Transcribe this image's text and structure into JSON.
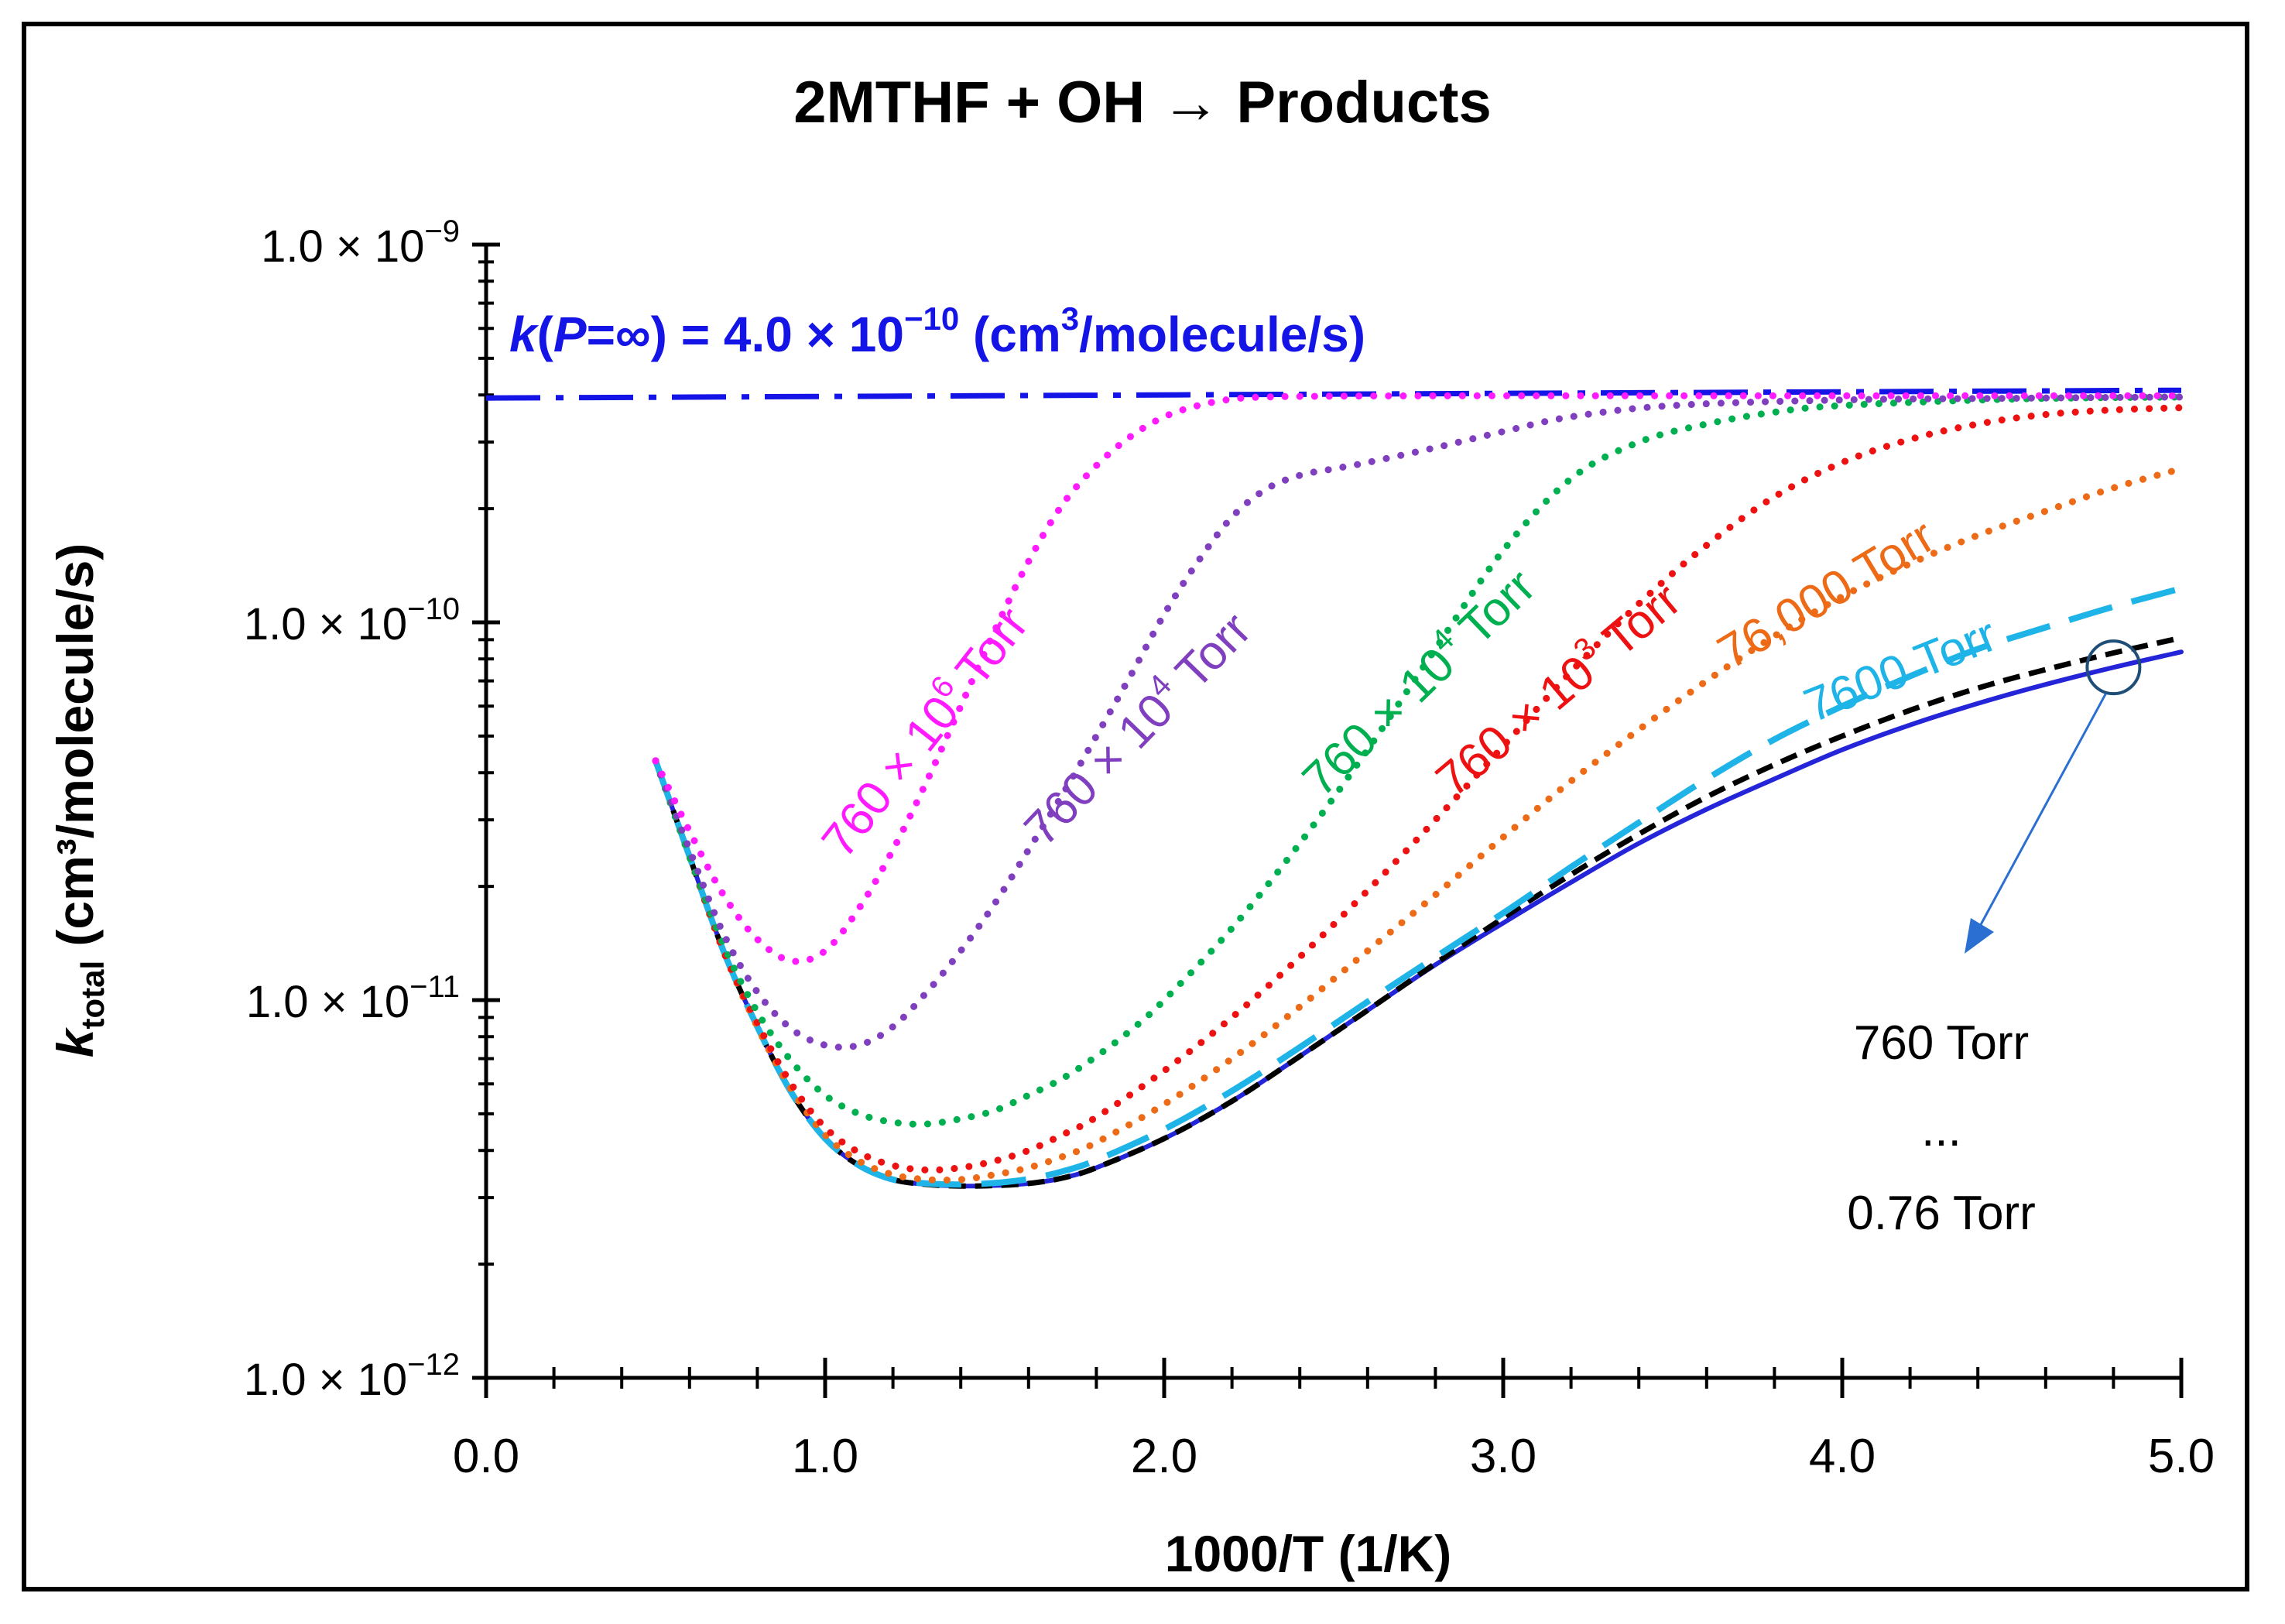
{
  "chart_data": {
    "type": "line",
    "title": "2MTHF + OH → Products",
    "xlabel": "1000/T (1/K)",
    "ylabel_main": "k",
    "ylabel_sub": "total",
    "ylabel_rest": " (cm³/molecule/s)",
    "xlim": [
      0.0,
      5.0
    ],
    "ylim_log10": [
      -12,
      -9
    ],
    "yscale": "log",
    "x_ticks": [
      {
        "value": 0.0,
        "label": "0.0"
      },
      {
        "value": 1.0,
        "label": "1.0"
      },
      {
        "value": 2.0,
        "label": "2.0"
      },
      {
        "value": 3.0,
        "label": "3.0"
      },
      {
        "value": 4.0,
        "label": "4.0"
      },
      {
        "value": 5.0,
        "label": "5.0"
      }
    ],
    "y_ticks": [
      {
        "exp": -9,
        "mant": "1.0 × 10",
        "sup": "−9"
      },
      {
        "exp": -10,
        "mant": "1.0 × 10",
        "sup": "−10"
      },
      {
        "exp": -11,
        "mant": "1.0 × 10",
        "sup": "−11"
      },
      {
        "exp": -12,
        "mant": "1.0 × 10",
        "sup": "−12"
      }
    ],
    "hp_limit": {
      "value": 4e-10,
      "label_k": "k",
      "label_p": "P",
      "label_mid": "=∞) = 4.0 × 10",
      "label_sup": "−10",
      "label_end": " (cm",
      "label_sup2": "3",
      "label_tail": "/molecule/s)",
      "color": "#1414e6"
    },
    "series": [
      {
        "name": "760 × 10^6 Torr",
        "label_main": "760 × 10",
        "label_sup": "6",
        "label_end": " Torr",
        "color": "#ff1aff",
        "style": "dotted",
        "x": [
          0.5,
          0.6,
          0.7,
          0.8,
          0.9,
          1.0,
          1.1,
          1.2,
          1.3,
          1.4,
          1.5,
          1.6,
          1.7,
          1.8,
          1.9,
          2.0,
          2.1,
          2.2,
          2.3,
          2.5,
          3.0,
          4.0,
          5.0
        ],
        "y": [
          4.3e-11,
          2.8e-11,
          1.9e-11,
          1.45e-11,
          1.27e-11,
          1.35e-11,
          1.75e-11,
          2.5e-11,
          3.8e-11,
          6e-11,
          9.5e-11,
          1.45e-10,
          2.05e-10,
          2.6e-10,
          3.1e-10,
          3.5e-10,
          3.75e-10,
          3.9e-10,
          3.95e-10,
          3.97e-10,
          3.98e-10,
          3.98e-10,
          3.98e-10
        ]
      },
      {
        "name": "760 × 10^4 Torr",
        "label_main": "760 × 10",
        "label_sup": "4",
        "label_end": " Torr",
        "color": "#7f3fbf",
        "style": "dotted",
        "x": [
          0.5,
          0.6,
          0.7,
          0.8,
          0.9,
          1.0,
          1.1,
          1.2,
          1.3,
          1.4,
          1.5,
          1.6,
          1.7,
          1.8,
          1.9,
          2.0,
          2.1,
          2.2,
          2.3,
          2.4,
          2.5,
          2.6,
          2.8,
          3.0,
          3.2,
          3.5,
          4.0,
          4.5,
          5.0
        ],
        "y": [
          4.3e-11,
          2.5e-11,
          1.5e-11,
          1.05e-11,
          8.4e-12,
          7.6e-12,
          7.6e-12,
          8.5e-12,
          1.05e-11,
          1.35e-11,
          1.8e-11,
          2.5e-11,
          3.5e-11,
          5e-11,
          7.2e-11,
          1.05e-10,
          1.45e-10,
          1.9e-10,
          2.25e-10,
          2.45e-10,
          2.55e-10,
          2.65e-10,
          2.9e-10,
          3.2e-10,
          3.5e-10,
          3.75e-10,
          3.88e-10,
          3.92e-10,
          3.95e-10
        ]
      },
      {
        "name": "760 × 10^4 Torr (green)",
        "label_main": "760 × 10",
        "label_sup": "4",
        "label_end": " Torr",
        "color": "#00b050",
        "style": "dotted",
        "x": [
          0.5,
          0.6,
          0.7,
          0.8,
          0.9,
          1.0,
          1.1,
          1.2,
          1.3,
          1.4,
          1.5,
          1.6,
          1.7,
          1.8,
          1.9,
          2.0,
          2.2,
          2.4,
          2.6,
          2.8,
          3.0,
          3.2,
          3.4,
          3.6,
          3.8,
          4.0,
          4.5,
          5.0
        ],
        "y": [
          4.3e-11,
          2.4e-11,
          1.4e-11,
          9.3e-12,
          6.9e-12,
          5.6e-12,
          5e-12,
          4.75e-12,
          4.7e-12,
          4.85e-12,
          5.1e-12,
          5.6e-12,
          6.2e-12,
          7.1e-12,
          8.3e-12,
          1e-11,
          1.55e-11,
          2.6e-11,
          4.6e-11,
          8.5e-11,
          1.55e-10,
          2.4e-10,
          3e-10,
          3.35e-10,
          3.6e-10,
          3.75e-10,
          3.9e-10,
          3.95e-10
        ]
      },
      {
        "name": "760 × 10^3 Torr",
        "label_main": "760 × 10",
        "label_sup": "3",
        "label_end": " Torr",
        "color": "#ee1111",
        "style": "dotted",
        "x": [
          0.5,
          0.6,
          0.7,
          0.8,
          0.9,
          1.0,
          1.1,
          1.2,
          1.3,
          1.4,
          1.5,
          1.6,
          1.7,
          1.8,
          2.0,
          2.2,
          2.4,
          2.6,
          2.8,
          3.0,
          3.2,
          3.4,
          3.6,
          3.8,
          4.0,
          4.2,
          4.4,
          4.6,
          4.8,
          5.0
        ],
        "y": [
          4.3e-11,
          2.4e-11,
          1.35e-11,
          8.7e-12,
          6e-12,
          4.6e-12,
          3.95e-12,
          3.65e-12,
          3.55e-12,
          3.6e-12,
          3.75e-12,
          4e-12,
          4.4e-12,
          4.9e-12,
          6.5e-12,
          9e-12,
          1.3e-11,
          1.95e-11,
          3e-11,
          4.7e-11,
          7.4e-11,
          1.12e-10,
          1.6e-10,
          2.15e-10,
          2.65e-10,
          3.05e-10,
          3.35e-10,
          3.55e-10,
          3.65e-10,
          3.7e-10
        ]
      },
      {
        "name": "76,000 Torr",
        "label_main": "76,000 Torr",
        "label_sup": "",
        "label_end": "",
        "color": "#ed6a16",
        "style": "dotted",
        "x": [
          0.5,
          0.6,
          0.7,
          0.8,
          0.9,
          1.0,
          1.1,
          1.2,
          1.3,
          1.4,
          1.5,
          1.6,
          1.7,
          1.8,
          2.0,
          2.2,
          2.4,
          2.6,
          2.8,
          3.0,
          3.2,
          3.4,
          3.6,
          3.8,
          4.0,
          4.2,
          4.4,
          4.6,
          4.8,
          5.0
        ],
        "y": [
          4.3e-11,
          2.4e-11,
          1.35e-11,
          8.5e-12,
          5.8e-12,
          4.4e-12,
          3.75e-12,
          3.45e-12,
          3.35e-12,
          3.35e-12,
          3.45e-12,
          3.6e-12,
          3.85e-12,
          4.2e-12,
          5.3e-12,
          7e-12,
          9.6e-12,
          1.35e-11,
          1.9e-11,
          2.7e-11,
          3.8e-11,
          5.2e-11,
          7e-11,
          9.2e-11,
          1.17e-10,
          1.43e-10,
          1.7e-10,
          1.97e-10,
          2.27e-10,
          2.55e-10
        ]
      },
      {
        "name": "7600 Torr",
        "label_main": "7600 Torr",
        "label_sup": "",
        "label_end": "",
        "color": "#1fb4e8",
        "style": "longdash",
        "x": [
          0.5,
          0.6,
          0.7,
          0.8,
          0.9,
          1.0,
          1.1,
          1.2,
          1.3,
          1.4,
          1.5,
          1.6,
          1.7,
          1.8,
          2.0,
          2.2,
          2.4,
          2.6,
          2.8,
          3.0,
          3.2,
          3.4,
          3.6,
          3.8,
          4.0,
          4.2,
          4.4,
          4.6,
          4.8,
          5.0
        ],
        "y": [
          4.3e-11,
          2.4e-11,
          1.35e-11,
          8.5e-12,
          5.7e-12,
          4.3e-12,
          3.65e-12,
          3.35e-12,
          3.27e-12,
          3.25e-12,
          3.28e-12,
          3.36e-12,
          3.52e-12,
          3.77e-12,
          4.55e-12,
          5.75e-12,
          7.5e-12,
          9.9e-12,
          1.3e-11,
          1.7e-11,
          2.25e-11,
          2.95e-11,
          3.85e-11,
          4.9e-11,
          6e-11,
          7.2e-11,
          8.5e-11,
          9.7e-11,
          1.1e-10,
          1.23e-10
        ]
      },
      {
        "name": "760 Torr",
        "label_main": "",
        "label_sup": "",
        "label_end": "",
        "color": "#000000",
        "style": "shortdash",
        "x": [
          0.5,
          0.6,
          0.7,
          0.8,
          0.9,
          1.0,
          1.1,
          1.2,
          1.3,
          1.4,
          1.5,
          1.6,
          1.7,
          1.8,
          2.0,
          2.2,
          2.4,
          2.6,
          2.8,
          3.0,
          3.2,
          3.4,
          3.6,
          3.8,
          4.0,
          4.2,
          4.4,
          4.6,
          4.8,
          5.0
        ],
        "y": [
          4.3e-11,
          2.4e-11,
          1.35e-11,
          8.5e-12,
          5.7e-12,
          4.3e-12,
          3.65e-12,
          3.35e-12,
          3.25e-12,
          3.22e-12,
          3.23e-12,
          3.27e-12,
          3.38e-12,
          3.6e-12,
          4.3e-12,
          5.4e-12,
          7.1e-12,
          9.4e-12,
          1.25e-11,
          1.65e-11,
          2.15e-11,
          2.75e-11,
          3.45e-11,
          4.2e-11,
          5e-11,
          5.85e-11,
          6.7e-11,
          7.5e-11,
          8.3e-11,
          9.1e-11
        ]
      },
      {
        "name": "0.76 Torr",
        "label_main": "",
        "label_sup": "",
        "label_end": "",
        "color": "#2424d8",
        "style": "solid",
        "x": [
          0.5,
          0.6,
          0.7,
          0.8,
          0.9,
          1.0,
          1.1,
          1.2,
          1.3,
          1.4,
          1.5,
          1.6,
          1.7,
          1.8,
          2.0,
          2.2,
          2.4,
          2.6,
          2.8,
          3.0,
          3.2,
          3.4,
          3.6,
          3.8,
          4.0,
          4.2,
          4.4,
          4.6,
          4.8,
          5.0
        ],
        "y": [
          4.3e-11,
          2.4e-11,
          1.35e-11,
          8.5e-12,
          5.7e-12,
          4.3e-12,
          3.65e-12,
          3.35e-12,
          3.25e-12,
          3.22e-12,
          3.23e-12,
          3.27e-12,
          3.38e-12,
          3.6e-12,
          4.3e-12,
          5.4e-12,
          7.1e-12,
          9.4e-12,
          1.24e-11,
          1.6e-11,
          2.05e-11,
          2.6e-11,
          3.2e-11,
          3.85e-11,
          4.6e-11,
          5.35e-11,
          6.1e-11,
          6.85e-11,
          7.6e-11,
          8.35e-11
        ]
      }
    ],
    "annotation": {
      "lines": [
        "760 Torr",
        "...",
        "0.76 Torr"
      ],
      "circle_x": 4.8,
      "circle_y": 7.6e-11,
      "arrow_color": "#2a6fd1",
      "circle_color": "#1f4e79"
    }
  }
}
